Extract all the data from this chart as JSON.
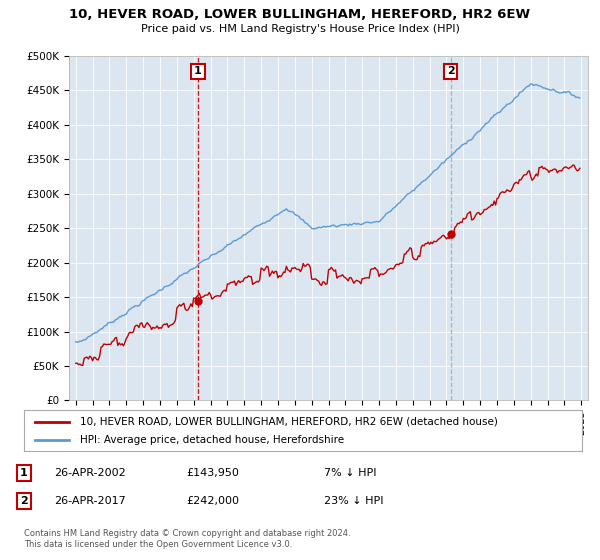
{
  "title": "10, HEVER ROAD, LOWER BULLINGHAM, HEREFORD, HR2 6EW",
  "subtitle": "Price paid vs. HM Land Registry's House Price Index (HPI)",
  "ylabel_ticks": [
    "£0",
    "£50K",
    "£100K",
    "£150K",
    "£200K",
    "£250K",
    "£300K",
    "£350K",
    "£400K",
    "£450K",
    "£500K"
  ],
  "ytick_values": [
    0,
    50000,
    100000,
    150000,
    200000,
    250000,
    300000,
    350000,
    400000,
    450000,
    500000
  ],
  "ylim": [
    0,
    500000
  ],
  "legend_line1": "10, HEVER ROAD, LOWER BULLINGHAM, HEREFORD, HR2 6EW (detached house)",
  "legend_line2": "HPI: Average price, detached house, Herefordshire",
  "sale1_date": "26-APR-2002",
  "sale1_price": 143950,
  "sale1_hpi": "7% ↓ HPI",
  "sale2_date": "26-APR-2017",
  "sale2_price": 242000,
  "sale2_hpi": "23% ↓ HPI",
  "footnote": "Contains HM Land Registry data © Crown copyright and database right 2024.\nThis data is licensed under the Open Government Licence v3.0.",
  "hpi_color": "#5b9bd5",
  "price_color": "#c00000",
  "vline1_color": "#c00000",
  "vline2_color": "#aaaaaa",
  "background_color": "#ffffff",
  "chart_bg_color": "#dce6f1",
  "grid_color": "#ffffff"
}
